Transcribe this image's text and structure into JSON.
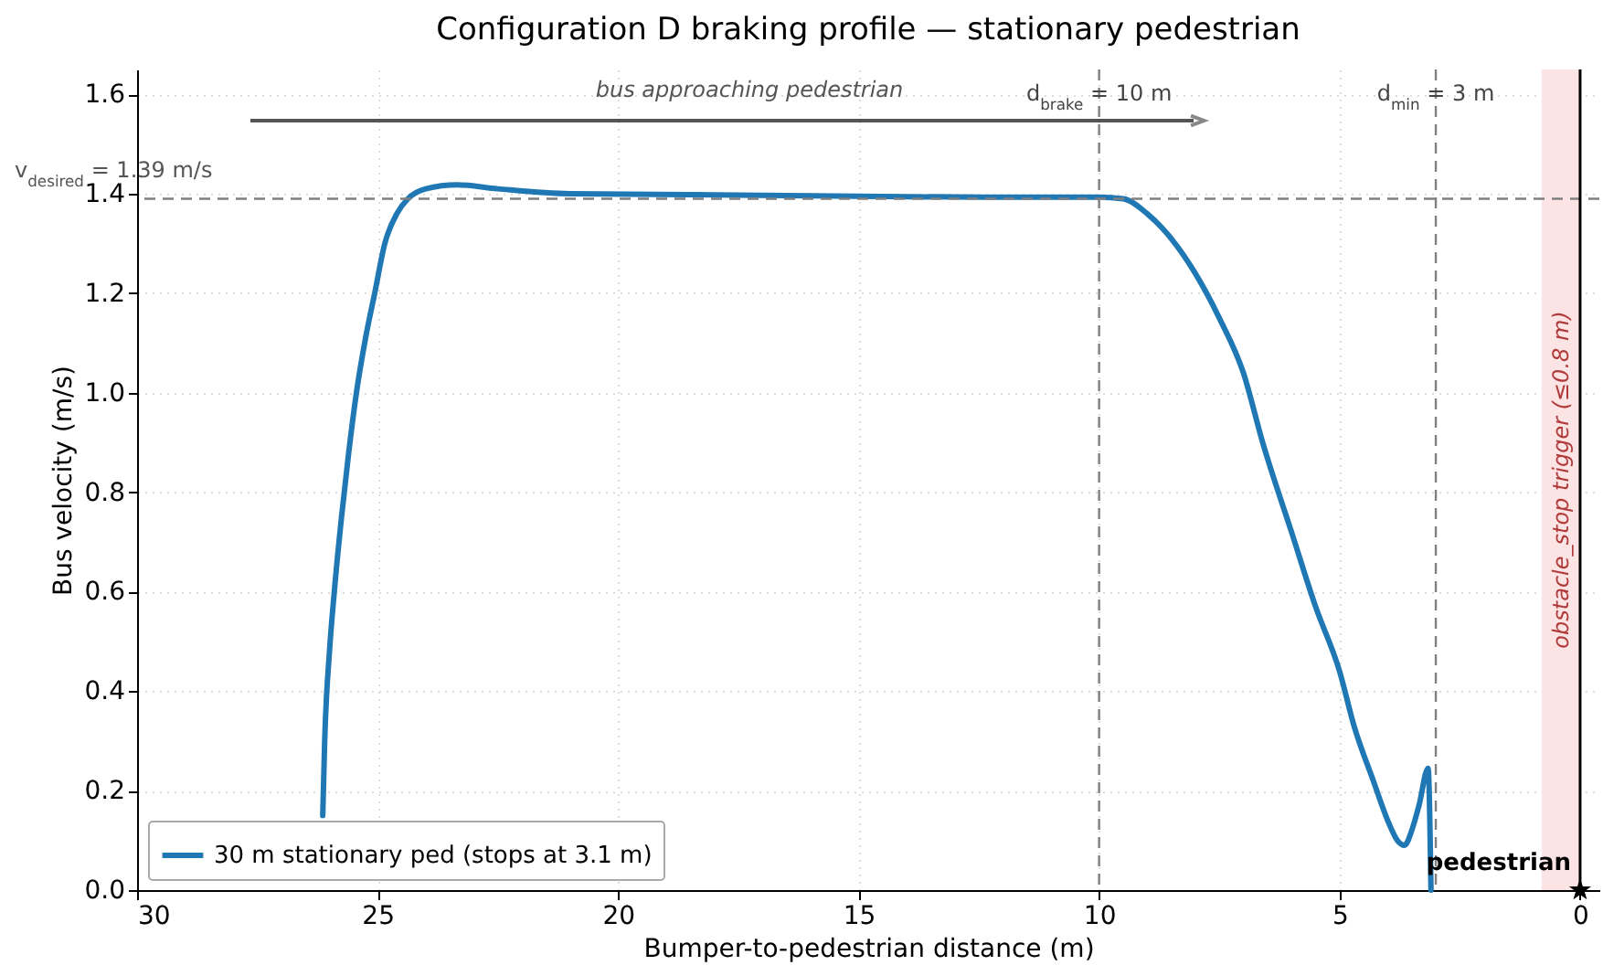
{
  "chart_data": {
    "type": "line",
    "title": "Configuration D braking profile — stationary pedestrian",
    "xlabel": "Bumper-to-pedestrian distance (m)",
    "ylabel": "Bus velocity (m/s)",
    "xlim": [
      30,
      -0.4
    ],
    "xticks": [
      30,
      25,
      20,
      15,
      10,
      5,
      0
    ],
    "ylim": [
      0,
      1.65
    ],
    "yticks": [
      {
        "value": 0,
        "label": "0.0"
      },
      {
        "value": 0.2,
        "label": "0.2"
      },
      {
        "value": 0.4,
        "label": "0.4"
      },
      {
        "value": 0.6,
        "label": "0.6"
      },
      {
        "value": 0.8,
        "label": "0.8"
      },
      {
        "value": 1,
        "label": "1.0"
      },
      {
        "value": 1.2,
        "label": "1.2"
      },
      {
        "value": 1.4,
        "label": "1.4"
      },
      {
        "value": 1.6,
        "label": "1.6"
      }
    ],
    "grid": true,
    "legend": "bottom left",
    "line_style": "solid",
    "marker": "none",
    "series": [
      {
        "name": "30 m stationary ped (stops at 3.1 m)",
        "color": "#1f77b4",
        "x": [
          26.14,
          26.1,
          26.0,
          25.9,
          25.75,
          25.6,
          25.44,
          25.25,
          25.06,
          24.85,
          24.6,
          24.37,
          24.0,
          23.35,
          22.5,
          21.0,
          18.0,
          15.0,
          12.0,
          10.0,
          9.5,
          9.0,
          8.5,
          8.0,
          7.5,
          7.0,
          6.6,
          6.0,
          5.5,
          5.0,
          4.7,
          4.3,
          4.0,
          3.8,
          3.65,
          3.5,
          3.35,
          3.16,
          3.1
        ],
        "values": [
          0.15,
          0.3,
          0.48,
          0.6,
          0.75,
          0.88,
          1.0,
          1.11,
          1.2,
          1.3,
          1.36,
          1.39,
          1.41,
          1.418,
          1.41,
          1.4,
          1.398,
          1.395,
          1.393,
          1.393,
          1.39,
          1.36,
          1.31,
          1.24,
          1.15,
          1.04,
          0.9,
          0.72,
          0.57,
          0.44,
          0.33,
          0.22,
          0.14,
          0.1,
          0.09,
          0.12,
          0.17,
          0.245,
          0.0
        ]
      },
      {
        "type": "scatter",
        "marker": "star",
        "color": "#000000",
        "x": [
          0
        ],
        "values": [
          0
        ]
      }
    ],
    "ref_lines": [
      {
        "axis": "y",
        "value": 1.39,
        "label": "v$_{desired}$ = 1.39 m/s",
        "color": "#808080",
        "line_style": "dashed"
      },
      {
        "axis": "x",
        "value": 10,
        "label": "d$_{brake}$ = 10 m",
        "color": "#808080",
        "line_style": "dashed"
      },
      {
        "axis": "x",
        "value": 3,
        "label": "d$_{min}$ = 3 m",
        "color": "#808080",
        "line_style": "dashed"
      },
      {
        "axis": "x",
        "value": 0,
        "color": "#000000",
        "line_style": "solid"
      }
    ],
    "bands": [
      {
        "axis": "x",
        "from": 0,
        "to": 0.8,
        "label": "obstacle_stop trigger (≤0.8 m)",
        "color": "#fde4e4"
      }
    ],
    "annotations": [
      "bus approaching pedestrian",
      {
        "text": "pedestrian",
        "x": 0,
        "y": 0
      }
    ]
  }
}
